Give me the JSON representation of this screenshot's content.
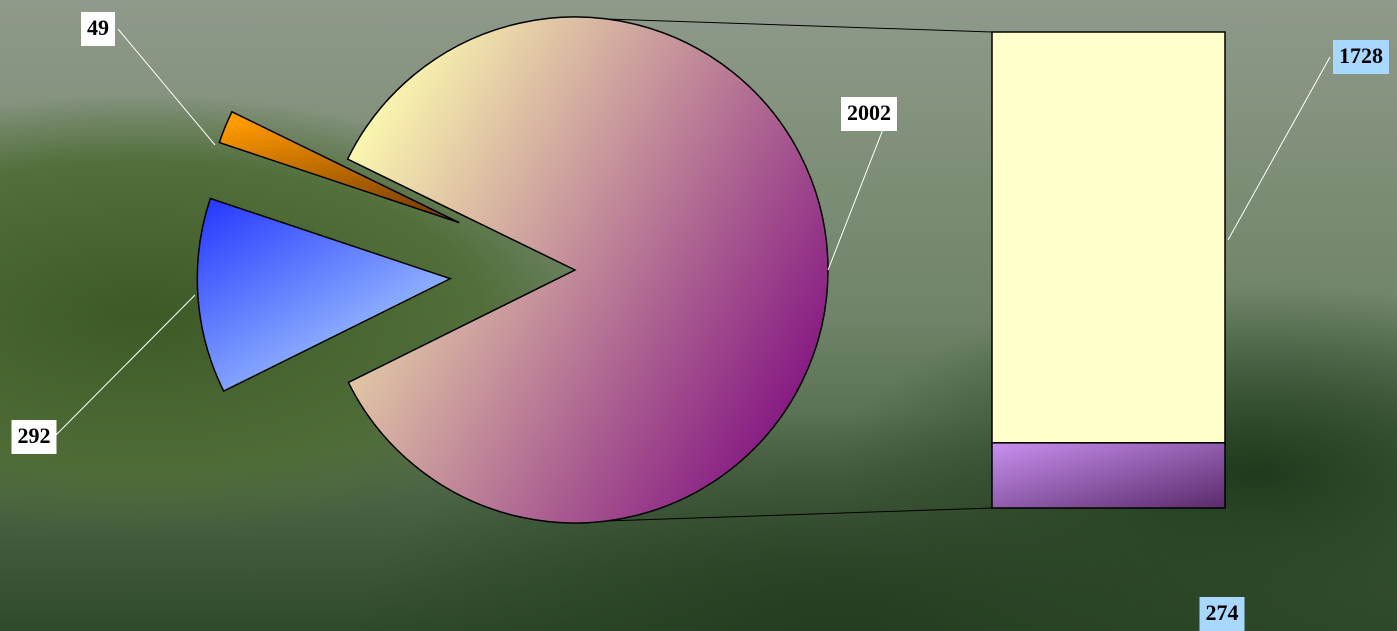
{
  "chart_data": {
    "type": "pie",
    "values": [
      2002,
      292,
      49
    ],
    "colors": [
      "#ffffb0",
      "#2a3cff",
      "#ff9a00"
    ],
    "breakdown": {
      "values": [
        1728,
        274
      ],
      "colors": [
        "#ffffcc",
        "#c890f0"
      ]
    }
  }
}
